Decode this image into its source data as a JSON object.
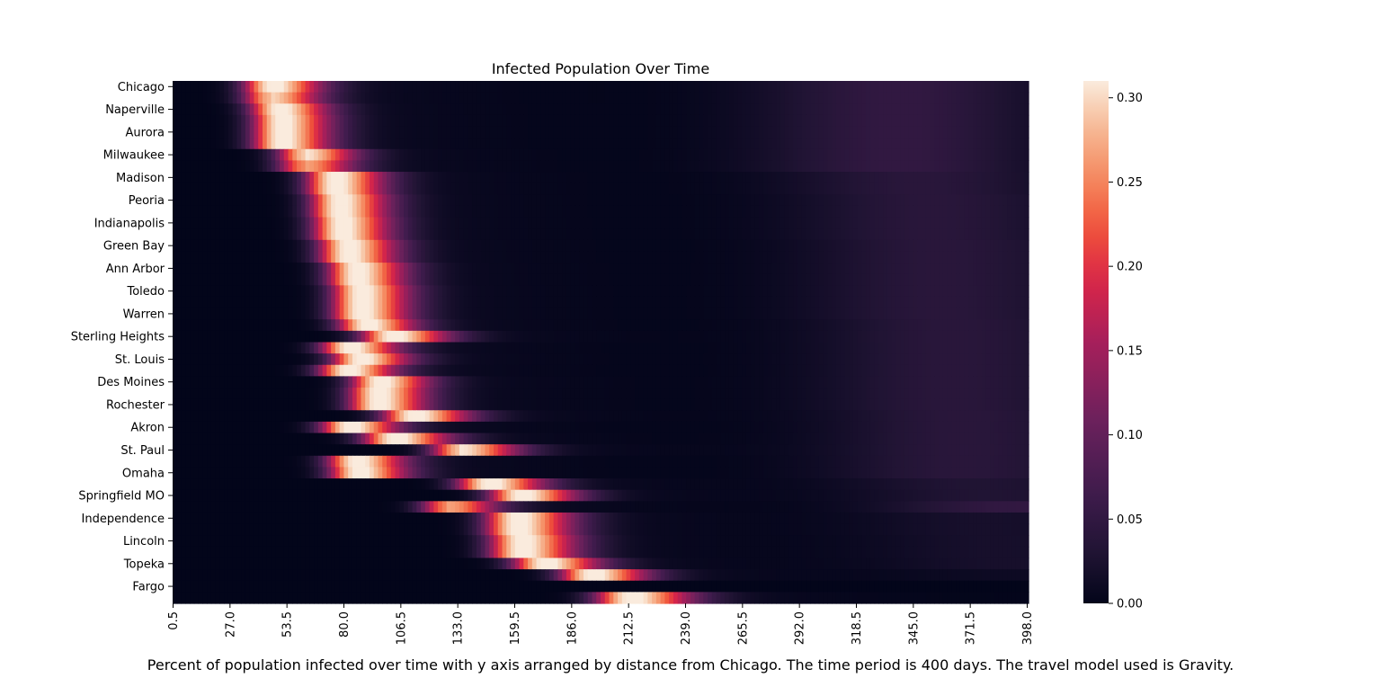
{
  "chart_data": {
    "type": "heatmap",
    "title": "Infected Population Over Time",
    "caption": "Percent of population infected over time with y axis arranged by distance from Chicago. The time period is 400 days. The travel model used is Gravity.",
    "xlabel": "",
    "ylabel": "",
    "x_tick_labels": [
      "0.5",
      "27.0",
      "53.5",
      "80.0",
      "106.5",
      "133.0",
      "159.5",
      "186.0",
      "212.5",
      "239.0",
      "265.5",
      "292.0",
      "318.5",
      "345.0",
      "371.5",
      "398.0"
    ],
    "x_range": [
      0.5,
      400
    ],
    "y_tick_labels": [
      "Chicago",
      "Naperville",
      "Aurora",
      "Milwaukee",
      "Madison",
      "Peoria",
      "Indianapolis",
      "Green Bay",
      "Ann Arbor",
      "Toledo",
      "Warren",
      "Sterling Heights",
      "St. Louis",
      "Des Moines",
      "Rochester",
      "Akron",
      "St. Paul",
      "Omaha",
      "Springfield MO",
      "Independence",
      "Lincoln",
      "Topeka",
      "Fargo"
    ],
    "row_count": 46,
    "colorbar": {
      "min": 0.0,
      "max": 0.31,
      "ticks": [
        "0.00",
        "0.05",
        "0.10",
        "0.15",
        "0.20",
        "0.25",
        "0.30"
      ],
      "colormap": "rocket"
    },
    "rows_peak": [
      {
        "peak_day": 46,
        "peak": 0.31,
        "width": 9,
        "second_day": 340,
        "second": 0.05
      },
      {
        "peak_day": 46,
        "peak": 0.28,
        "width": 9,
        "second_day": 340,
        "second": 0.05
      },
      {
        "peak_day": 49,
        "peak": 0.31,
        "width": 9,
        "second_day": 340,
        "second": 0.05
      },
      {
        "peak_day": 50,
        "peak": 0.31,
        "width": 9,
        "second_day": 340,
        "second": 0.05
      },
      {
        "peak_day": 50,
        "peak": 0.31,
        "width": 9,
        "second_day": 340,
        "second": 0.05
      },
      {
        "peak_day": 50,
        "peak": 0.31,
        "width": 9,
        "second_day": 340,
        "second": 0.05
      },
      {
        "peak_day": 62,
        "peak": 0.29,
        "width": 9,
        "second_day": 340,
        "second": 0.05
      },
      {
        "peak_day": 62,
        "peak": 0.25,
        "width": 9,
        "second_day": 340,
        "second": 0.05
      },
      {
        "peak_day": 75,
        "peak": 0.31,
        "width": 9,
        "second_day": 350,
        "second": 0.04
      },
      {
        "peak_day": 75,
        "peak": 0.31,
        "width": 9,
        "second_day": 350,
        "second": 0.04
      },
      {
        "peak_day": 77,
        "peak": 0.31,
        "width": 9,
        "second_day": 355,
        "second": 0.04
      },
      {
        "peak_day": 77,
        "peak": 0.31,
        "width": 9,
        "second_day": 355,
        "second": 0.04
      },
      {
        "peak_day": 78,
        "peak": 0.31,
        "width": 9,
        "second_day": 355,
        "second": 0.04
      },
      {
        "peak_day": 78,
        "peak": 0.31,
        "width": 9,
        "second_day": 355,
        "second": 0.04
      },
      {
        "peak_day": 81,
        "peak": 0.31,
        "width": 9,
        "second_day": 360,
        "second": 0.04
      },
      {
        "peak_day": 81,
        "peak": 0.31,
        "width": 9,
        "second_day": 360,
        "second": 0.04
      },
      {
        "peak_day": 85,
        "peak": 0.31,
        "width": 9,
        "second_day": 360,
        "second": 0.04
      },
      {
        "peak_day": 85,
        "peak": 0.31,
        "width": 9,
        "second_day": 360,
        "second": 0.04
      },
      {
        "peak_day": 87,
        "peak": 0.31,
        "width": 9,
        "second_day": 360,
        "second": 0.04
      },
      {
        "peak_day": 87,
        "peak": 0.31,
        "width": 9,
        "second_day": 360,
        "second": 0.04
      },
      {
        "peak_day": 87,
        "peak": 0.31,
        "width": 9,
        "second_day": 360,
        "second": 0.04
      },
      {
        "peak_day": 90,
        "peak": 0.31,
        "width": 9,
        "second_day": 365,
        "second": 0.04
      },
      {
        "peak_day": 102,
        "peak": 0.31,
        "width": 10,
        "second_day": 365,
        "second": 0.04
      },
      {
        "peak_day": 82,
        "peak": 0.31,
        "width": 9,
        "second_day": 365,
        "second": 0.04
      },
      {
        "peak_day": 87,
        "peak": 0.31,
        "width": 9,
        "second_day": 365,
        "second": 0.04
      },
      {
        "peak_day": 81,
        "peak": 0.31,
        "width": 9,
        "second_day": 365,
        "second": 0.04
      },
      {
        "peak_day": 96,
        "peak": 0.31,
        "width": 9,
        "second_day": 365,
        "second": 0.04
      },
      {
        "peak_day": 95,
        "peak": 0.31,
        "width": 9,
        "second_day": 365,
        "second": 0.04
      },
      {
        "peak_day": 95,
        "peak": 0.31,
        "width": 9,
        "second_day": 365,
        "second": 0.04
      },
      {
        "peak_day": 112,
        "peak": 0.31,
        "width": 10,
        "second_day": 370,
        "second": 0.04
      },
      {
        "peak_day": 82,
        "peak": 0.31,
        "width": 9,
        "second_day": 370,
        "second": 0.04
      },
      {
        "peak_day": 103,
        "peak": 0.31,
        "width": 10,
        "second_day": 370,
        "second": 0.04
      },
      {
        "peak_day": 135,
        "peak": 0.29,
        "width": 10,
        "second_day": 370,
        "second": 0.04
      },
      {
        "peak_day": 85,
        "peak": 0.31,
        "width": 9,
        "second_day": 370,
        "second": 0.04
      },
      {
        "peak_day": 86,
        "peak": 0.31,
        "width": 9,
        "second_day": 370,
        "second": 0.04
      },
      {
        "peak_day": 147,
        "peak": 0.31,
        "width": 10,
        "second_day": 375,
        "second": 0.03
      },
      {
        "peak_day": 162,
        "peak": 0.31,
        "width": 10,
        "second_day": 380,
        "second": 0.03
      },
      {
        "peak_day": 129,
        "peak": 0.25,
        "width": 9,
        "second_day": 395,
        "second": 0.05
      },
      {
        "peak_day": 160,
        "peak": 0.31,
        "width": 10,
        "second_day": 380,
        "second": 0.02
      },
      {
        "peak_day": 160,
        "peak": 0.31,
        "width": 10,
        "second_day": 380,
        "second": 0.02
      },
      {
        "peak_day": 162,
        "peak": 0.31,
        "width": 10,
        "second_day": 385,
        "second": 0.02
      },
      {
        "peak_day": 162,
        "peak": 0.31,
        "width": 10,
        "second_day": 385,
        "second": 0.02
      },
      {
        "peak_day": 173,
        "peak": 0.31,
        "width": 10,
        "second_day": 390,
        "second": 0.02
      },
      {
        "peak_day": 195,
        "peak": 0.31,
        "width": 10,
        "second_day": 395,
        "second": 0.01
      },
      {
        "peak_day": 0,
        "peak": 0.0,
        "width": 10,
        "second_day": 0,
        "second": 0.0
      },
      {
        "peak_day": 213,
        "peak": 0.31,
        "width": 11,
        "second_day": 0,
        "second": 0.0
      }
    ]
  }
}
